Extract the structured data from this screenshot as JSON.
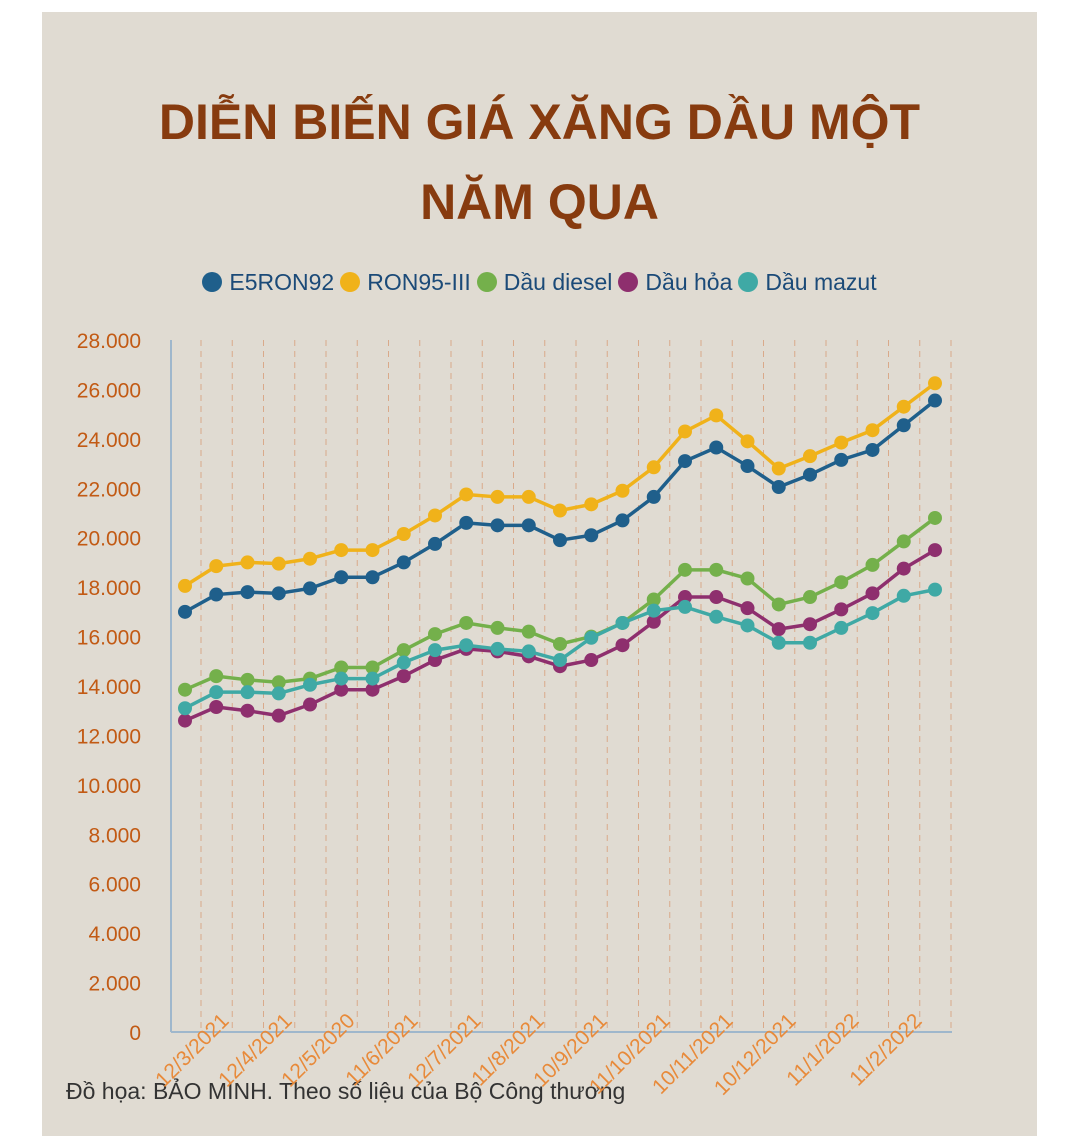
{
  "title": "DIỄN BIẾN GIÁ XĂNG DẦU MỘT NĂM QUA",
  "credit": "Đồ họa: BẢO MINH. Theo số liệu của Bộ Công thương",
  "colors": {
    "E5RON92": "#1f5f8b",
    "RON95-III": "#f0b21a",
    "Dau diesel": "#74b04b",
    "Dau hoa": "#8e2f6e",
    "Dau mazut": "#3fa9a5",
    "title": "#873b0f",
    "axis": "#9fb7cc",
    "tick": "#c25a14"
  },
  "chart_data": {
    "type": "line",
    "title": "DIỄN BIẾN GIÁ XĂNG DẦU MỘT NĂM QUA",
    "ylim": [
      0,
      28000
    ],
    "yticks": [
      "0",
      "2.000",
      "4.000",
      "6.000",
      "8.000",
      "10.000",
      "12.000",
      "14.000",
      "16.000",
      "18.000",
      "20.000",
      "22.000",
      "24.000",
      "26.000",
      "28.000"
    ],
    "x_tick_labels": [
      "12/3/2021",
      "12/4/2021",
      "12/5/2020",
      "11/6/2021",
      "12/7/2021",
      "11/8/2021",
      "10/9/2021",
      "11/10/2021",
      "10/11/2021",
      "10/12/2021",
      "11/1/2022",
      "11/2/2022"
    ],
    "grid": "vertical dashed",
    "legend_position": "top",
    "series": [
      {
        "name": "E5RON92",
        "values": [
          17000,
          17700,
          17800,
          17750,
          17950,
          18400,
          18400,
          19000,
          19750,
          20600,
          20500,
          20500,
          19900,
          20100,
          20700,
          21650,
          23100,
          23650,
          22900,
          22050,
          22550,
          23150,
          23550,
          24550,
          25550
        ]
      },
      {
        "name": "RON95-III",
        "values": [
          18050,
          18850,
          19000,
          18950,
          19150,
          19500,
          19500,
          20150,
          20900,
          21750,
          21650,
          21650,
          21100,
          21350,
          21900,
          22850,
          24300,
          24950,
          23900,
          22800,
          23300,
          23850,
          24350,
          25300,
          26250
        ]
      },
      {
        "name": "Dầu diesel",
        "values": [
          13850,
          14400,
          14250,
          14150,
          14300,
          14750,
          14750,
          15450,
          16100,
          16550,
          16350,
          16200,
          15700,
          16000,
          16550,
          17500,
          18700,
          18700,
          18350,
          17300,
          17600,
          18200,
          18900,
          19850,
          20800
        ]
      },
      {
        "name": "Dầu hỏa",
        "values": [
          12600,
          13150,
          13000,
          12800,
          13250,
          13850,
          13850,
          14400,
          15050,
          15500,
          15400,
          15200,
          14800,
          15050,
          15650,
          16600,
          17600,
          17600,
          17150,
          16300,
          16500,
          17100,
          17750,
          18750,
          19500
        ]
      },
      {
        "name": "Dầu mazut",
        "values": [
          13100,
          13750,
          13750,
          13700,
          14050,
          14300,
          14300,
          14950,
          15450,
          15650,
          15500,
          15400,
          15050,
          15950,
          16550,
          17050,
          17200,
          16800,
          16450,
          15750,
          15750,
          16350,
          16950,
          17650,
          17900
        ]
      }
    ]
  }
}
